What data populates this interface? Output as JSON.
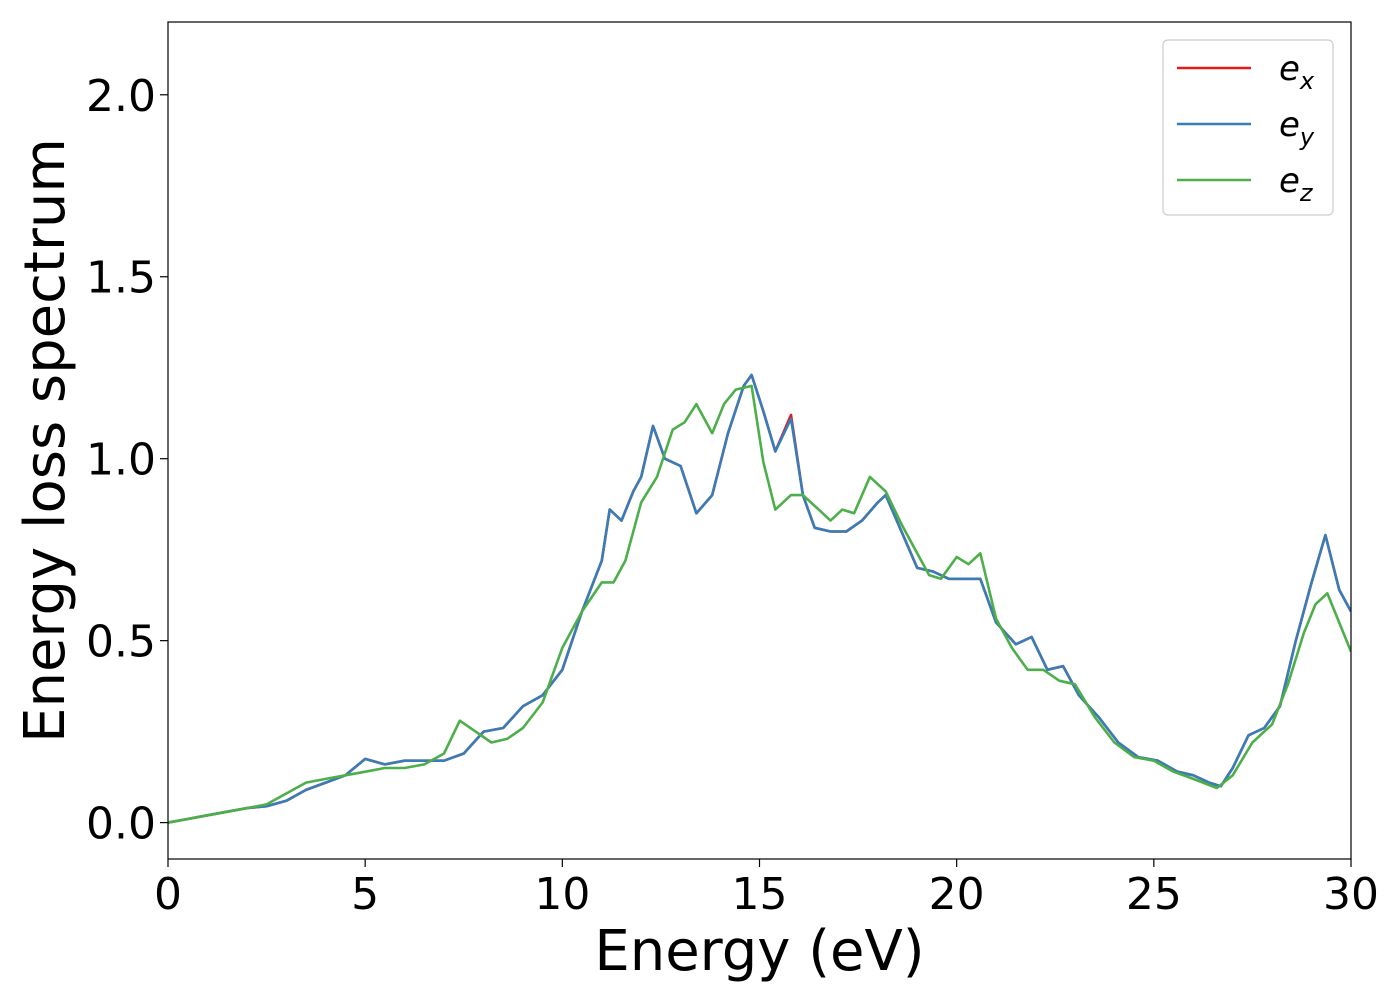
{
  "chart_data": {
    "type": "line",
    "xlabel": "Energy (eV)",
    "ylabel": "Energy loss spectrum",
    "xlim": [
      0,
      30
    ],
    "ylim": [
      -0.1,
      2.2
    ],
    "xticks": [
      0,
      5,
      10,
      15,
      20,
      25,
      30
    ],
    "xtick_labels": [
      "0",
      "5",
      "10",
      "15",
      "20",
      "25",
      "30"
    ],
    "yticks": [
      0.0,
      0.5,
      1.0,
      1.5,
      2.0
    ],
    "ytick_labels": [
      "0.0",
      "0.5",
      "1.0",
      "1.5",
      "2.0"
    ],
    "grid": false,
    "legend_position": "top-right",
    "series": [
      {
        "name": "e_x",
        "legend_base": "e",
        "legend_sub": "x",
        "color": "#e41a1c",
        "x": [
          0,
          0.5,
          1,
          1.5,
          2,
          2.5,
          3,
          3.5,
          4,
          4.5,
          5,
          5.5,
          6,
          6.5,
          7,
          7.5,
          8,
          8.5,
          9,
          9.5,
          10,
          10.5,
          11,
          11.2,
          11.5,
          11.8,
          12,
          12.3,
          12.6,
          13,
          13.4,
          13.8,
          14.2,
          14.6,
          14.8,
          15.1,
          15.4,
          15.8,
          16.1,
          16.4,
          16.8,
          17.2,
          17.6,
          18,
          18.2,
          18.6,
          19,
          19.4,
          19.8,
          20.2,
          20.6,
          21,
          21.5,
          21.9,
          22.3,
          22.7,
          23.1,
          23.6,
          24.1,
          24.6,
          25.1,
          25.6,
          26,
          26.4,
          26.7,
          27,
          27.4,
          27.8,
          28.2,
          28.6,
          29,
          29.35,
          29.7,
          30
        ],
        "y": [
          0,
          0.01,
          0.02,
          0.03,
          0.04,
          0.045,
          0.06,
          0.09,
          0.11,
          0.13,
          0.175,
          0.16,
          0.17,
          0.17,
          0.17,
          0.19,
          0.25,
          0.26,
          0.32,
          0.35,
          0.42,
          0.58,
          0.72,
          0.86,
          0.83,
          0.91,
          0.95,
          1.09,
          1.0,
          0.98,
          0.85,
          0.9,
          1.07,
          1.2,
          1.23,
          1.13,
          1.02,
          1.12,
          0.9,
          0.81,
          0.8,
          0.8,
          0.83,
          0.88,
          0.9,
          0.8,
          0.7,
          0.69,
          0.67,
          0.67,
          0.67,
          0.55,
          0.49,
          0.51,
          0.42,
          0.43,
          0.35,
          0.29,
          0.22,
          0.18,
          0.17,
          0.14,
          0.13,
          0.11,
          0.1,
          0.15,
          0.24,
          0.26,
          0.32,
          0.5,
          0.66,
          0.79,
          0.64,
          0.58
        ]
      },
      {
        "name": "e_y",
        "legend_base": "e",
        "legend_sub": "y",
        "color": "#377eb8",
        "x": [
          0,
          0.5,
          1,
          1.5,
          2,
          2.5,
          3,
          3.5,
          4,
          4.5,
          5,
          5.5,
          6,
          6.5,
          7,
          7.5,
          8,
          8.5,
          9,
          9.5,
          10,
          10.5,
          11,
          11.2,
          11.5,
          11.8,
          12,
          12.3,
          12.6,
          13,
          13.4,
          13.8,
          14.2,
          14.6,
          14.8,
          15.1,
          15.4,
          15.8,
          16.1,
          16.4,
          16.8,
          17.2,
          17.6,
          18,
          18.2,
          18.6,
          19,
          19.4,
          19.8,
          20.2,
          20.6,
          21,
          21.5,
          21.9,
          22.3,
          22.7,
          23.1,
          23.6,
          24.1,
          24.6,
          25.1,
          25.6,
          26,
          26.4,
          26.7,
          27,
          27.4,
          27.8,
          28.2,
          28.6,
          29,
          29.35,
          29.7,
          30
        ],
        "y": [
          0,
          0.01,
          0.02,
          0.03,
          0.04,
          0.045,
          0.06,
          0.09,
          0.11,
          0.13,
          0.175,
          0.16,
          0.17,
          0.17,
          0.17,
          0.19,
          0.25,
          0.26,
          0.32,
          0.35,
          0.42,
          0.58,
          0.72,
          0.86,
          0.83,
          0.91,
          0.95,
          1.09,
          1.0,
          0.98,
          0.85,
          0.9,
          1.07,
          1.2,
          1.23,
          1.13,
          1.02,
          1.11,
          0.9,
          0.81,
          0.8,
          0.8,
          0.83,
          0.88,
          0.9,
          0.8,
          0.7,
          0.69,
          0.67,
          0.67,
          0.67,
          0.55,
          0.49,
          0.51,
          0.42,
          0.43,
          0.35,
          0.29,
          0.22,
          0.18,
          0.17,
          0.14,
          0.13,
          0.11,
          0.1,
          0.15,
          0.24,
          0.26,
          0.32,
          0.5,
          0.66,
          0.79,
          0.64,
          0.58
        ]
      },
      {
        "name": "e_z",
        "legend_base": "e",
        "legend_sub": "z",
        "color": "#4daf4a",
        "x": [
          0,
          0.5,
          1,
          1.5,
          2,
          2.5,
          3,
          3.5,
          4,
          4.5,
          5,
          5.5,
          6,
          6.5,
          7,
          7.4,
          7.8,
          8.2,
          8.6,
          9,
          9.5,
          10,
          10.5,
          11,
          11.3,
          11.6,
          12,
          12.4,
          12.8,
          13.1,
          13.4,
          13.8,
          14.1,
          14.4,
          14.8,
          15.1,
          15.4,
          15.8,
          16.1,
          16.5,
          16.8,
          17.1,
          17.4,
          17.8,
          18.2,
          18.6,
          19,
          19.3,
          19.6,
          20,
          20.3,
          20.6,
          21,
          21.4,
          21.8,
          22.2,
          22.6,
          23,
          23.5,
          24,
          24.5,
          25,
          25.5,
          26,
          26.6,
          27,
          27.5,
          28,
          28.4,
          28.8,
          29.1,
          29.4,
          29.7,
          30
        ],
        "y": [
          0,
          0.01,
          0.02,
          0.03,
          0.04,
          0.05,
          0.08,
          0.11,
          0.12,
          0.13,
          0.14,
          0.15,
          0.15,
          0.16,
          0.19,
          0.28,
          0.25,
          0.22,
          0.23,
          0.26,
          0.33,
          0.48,
          0.58,
          0.66,
          0.66,
          0.72,
          0.88,
          0.95,
          1.08,
          1.1,
          1.15,
          1.07,
          1.15,
          1.19,
          1.2,
          0.99,
          0.86,
          0.9,
          0.9,
          0.86,
          0.83,
          0.86,
          0.85,
          0.95,
          0.91,
          0.82,
          0.74,
          0.68,
          0.67,
          0.73,
          0.71,
          0.74,
          0.56,
          0.48,
          0.42,
          0.42,
          0.39,
          0.38,
          0.29,
          0.22,
          0.18,
          0.17,
          0.14,
          0.12,
          0.095,
          0.13,
          0.22,
          0.27,
          0.38,
          0.52,
          0.6,
          0.63,
          0.55,
          0.47
        ]
      }
    ]
  }
}
